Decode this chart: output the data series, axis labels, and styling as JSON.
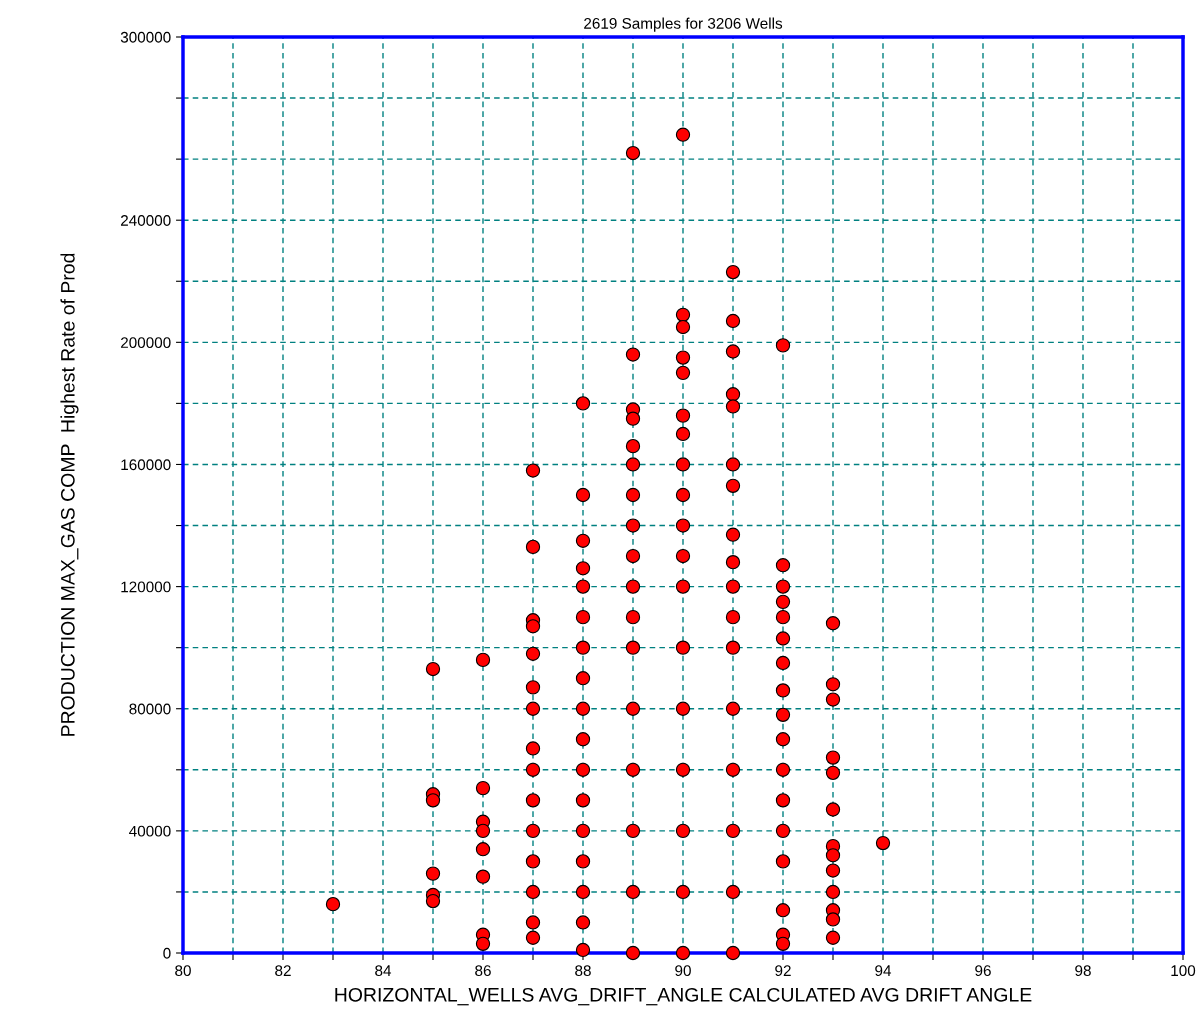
{
  "chart_data": {
    "type": "scatter",
    "title": "2619 Samples for 3206 Wells",
    "xlabel": "HORIZONTAL_WELLS AVG_DRIFT_ANGLE CALCULATED AVG DRIFT ANGLE",
    "ylabel": "PRODUCTION MAX_GAS COMP  Highest Rate of Prod",
    "series": [
      {
        "color": "#ff0000",
        "x": [
          83,
          85,
          85,
          85,
          85,
          85,
          85,
          86,
          86,
          86,
          86,
          86,
          86,
          86,
          86,
          87,
          87,
          87,
          87,
          87,
          87,
          87,
          87,
          87,
          87,
          87,
          87,
          87,
          87,
          87,
          88,
          88,
          88,
          88,
          88,
          88,
          88,
          88,
          88,
          88,
          88,
          88,
          88,
          88,
          88,
          88,
          88,
          89,
          89,
          89,
          89,
          89,
          89,
          89,
          89,
          89,
          89,
          89,
          89,
          89,
          89,
          89,
          89,
          89,
          90,
          90,
          90,
          90,
          90,
          90,
          90,
          90,
          90,
          90,
          90,
          90,
          90,
          90,
          90,
          90,
          90,
          90,
          91,
          91,
          91,
          91,
          91,
          91,
          91,
          91,
          91,
          91,
          91,
          91,
          91,
          91,
          91,
          91,
          91,
          92,
          92,
          92,
          92,
          92,
          92,
          92,
          92,
          92,
          92,
          92,
          92,
          92,
          92,
          92,
          92,
          92,
          93,
          93,
          93,
          93,
          93,
          93,
          93,
          93,
          93,
          93,
          93,
          93,
          93,
          94
        ],
        "values": [
          16000,
          93000,
          52000,
          50000,
          26000,
          19000,
          17000,
          96000,
          54000,
          43000,
          40000,
          34000,
          25000,
          6000,
          3000,
          158000,
          133000,
          109000,
          107000,
          98000,
          87000,
          80000,
          67000,
          60000,
          50000,
          40000,
          30000,
          20000,
          10000,
          5000,
          180000,
          150000,
          135000,
          126000,
          120000,
          110000,
          100000,
          90000,
          80000,
          70000,
          60000,
          50000,
          40000,
          30000,
          20000,
          10000,
          1000,
          262000,
          196000,
          178000,
          175000,
          166000,
          160000,
          150000,
          140000,
          130000,
          120000,
          110000,
          100000,
          80000,
          60000,
          40000,
          20000,
          0,
          268000,
          209000,
          205000,
          195000,
          190000,
          176000,
          170000,
          160000,
          150000,
          140000,
          130000,
          120000,
          100000,
          80000,
          60000,
          40000,
          20000,
          0,
          223000,
          207000,
          197000,
          183000,
          179000,
          160000,
          153000,
          137000,
          128000,
          120000,
          110000,
          100000,
          80000,
          60000,
          40000,
          20000,
          0,
          199000,
          127000,
          120000,
          115000,
          110000,
          103000,
          95000,
          86000,
          78000,
          70000,
          60000,
          50000,
          40000,
          30000,
          14000,
          6000,
          3000,
          108000,
          88000,
          83000,
          64000,
          59000,
          47000,
          35000,
          32000,
          27000,
          20000,
          14000,
          11000,
          5000,
          36000
        ]
      }
    ],
    "xlim": [
      80,
      100
    ],
    "xticks": [
      80,
      {
        "value": 81,
        "label": null
      },
      82,
      {
        "value": 83,
        "label": null
      },
      84,
      {
        "value": 85,
        "label": null
      },
      86,
      {
        "value": 87,
        "label": null
      },
      88,
      {
        "value": 89,
        "label": null
      },
      90,
      {
        "value": 91,
        "label": null
      },
      92,
      {
        "value": 93,
        "label": null
      },
      94,
      {
        "value": 95,
        "label": null
      },
      96,
      {
        "value": 97,
        "label": null
      },
      98,
      {
        "value": 99,
        "label": null
      },
      100
    ],
    "ylim": [
      0,
      300000
    ],
    "yticks": [
      0,
      {
        "value": 20000,
        "label": null
      },
      40000,
      {
        "value": 60000,
        "label": null
      },
      80000,
      {
        "value": 100000,
        "label": null
      },
      120000,
      {
        "value": 140000,
        "label": null
      },
      160000,
      {
        "value": 180000,
        "label": null
      },
      200000,
      {
        "value": 220000,
        "label": null
      },
      240000,
      {
        "value": 260000,
        "label": null
      },
      {
        "value": 280000,
        "label": null
      },
      300000
    ],
    "grid": true,
    "marker": "circle"
  }
}
